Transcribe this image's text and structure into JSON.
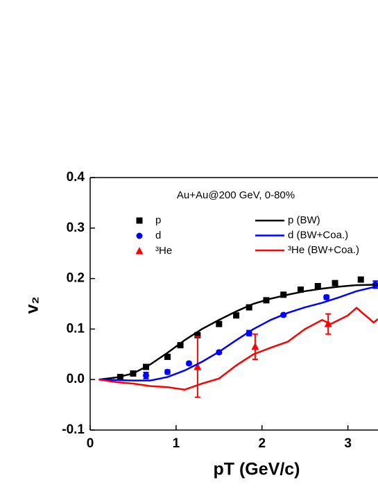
{
  "chart_data": {
    "type": "scatter",
    "annotation": "Au+Au@200 GeV, 0-80%",
    "x_label": "pT (GeV/c)",
    "y_label": "v₂",
    "xlim": [
      0,
      3.35
    ],
    "ylim": [
      -0.1,
      0.4
    ],
    "xticks": [
      0,
      1,
      2,
      3
    ],
    "yticks": [
      -0.1,
      {
        "value": 0,
        "label": "0.0"
      },
      0.1,
      0.2,
      0.3,
      0.4
    ],
    "series": [
      {
        "name": "p",
        "type": "scatter",
        "marker": "square",
        "color": "#000000",
        "x": [
          0.35,
          0.5,
          0.65,
          0.9,
          1.05,
          1.25,
          1.5,
          1.7,
          1.85,
          2.05,
          2.25,
          2.45,
          2.65,
          2.85,
          3.15
        ],
        "values": [
          0.005,
          0.012,
          0.025,
          0.045,
          0.068,
          0.088,
          0.11,
          0.127,
          0.143,
          0.157,
          0.168,
          0.178,
          0.185,
          0.191,
          0.198
        ],
        "errors": [
          0.003,
          0.003,
          0.003,
          0.003,
          0.003,
          0.003,
          0.003,
          0.003,
          0.003,
          0.003,
          0.003,
          0.003,
          0.003,
          0.003,
          0.004
        ]
      },
      {
        "name": "d",
        "type": "scatter",
        "marker": "circle",
        "color": "#0000ff",
        "x": [
          0.65,
          0.9,
          1.15,
          1.5,
          1.85,
          2.25,
          2.75,
          3.32
        ],
        "values": [
          0.008,
          0.015,
          0.032,
          0.054,
          0.092,
          0.128,
          0.163,
          0.188
        ],
        "errors": [
          0.006,
          0.004,
          0.003,
          0.003,
          0.005,
          0.003,
          0.004,
          0.007
        ]
      },
      {
        "name": "³He",
        "type": "scatter",
        "marker": "triangle",
        "color": "#ff0000",
        "x": [
          1.25,
          1.92,
          2.77
        ],
        "values": [
          0.025,
          0.065,
          0.11
        ],
        "errors": [
          0.06,
          0.025,
          0.02
        ]
      },
      {
        "name": "p (BW)",
        "type": "line",
        "color": "#000000",
        "x": [
          0.1,
          0.3,
          0.5,
          0.7,
          0.9,
          1.1,
          1.3,
          1.5,
          1.7,
          1.9,
          2.1,
          2.3,
          2.5,
          2.7,
          2.9,
          3.1,
          3.35
        ],
        "values": [
          0,
          0.004,
          0.012,
          0.03,
          0.053,
          0.078,
          0.1,
          0.118,
          0.135,
          0.15,
          0.16,
          0.168,
          0.175,
          0.18,
          0.184,
          0.187,
          0.188
        ]
      },
      {
        "name": "d (BW+Coa.)",
        "type": "line",
        "color": "#0000ff",
        "x": [
          0.1,
          0.5,
          0.7,
          0.9,
          1.1,
          1.3,
          1.5,
          1.7,
          1.9,
          2.1,
          2.3,
          2.5,
          2.7,
          2.9,
          3.1,
          3.35
        ],
        "values": [
          0,
          -0.002,
          -0.002,
          0.005,
          0.018,
          0.035,
          0.055,
          0.078,
          0.1,
          0.118,
          0.132,
          0.143,
          0.152,
          0.163,
          0.175,
          0.185
        ]
      },
      {
        "name": "³He (BW+Coa.)",
        "type": "line",
        "color": "#ff0000",
        "x": [
          0.1,
          0.3,
          0.5,
          0.7,
          0.9,
          1.1,
          1.3,
          1.5,
          1.7,
          1.9,
          2.1,
          2.3,
          2.5,
          2.7,
          2.8,
          3.0,
          3.1,
          3.3,
          3.35
        ],
        "values": [
          0,
          -0.005,
          -0.008,
          -0.013,
          -0.015,
          -0.02,
          -0.008,
          0.002,
          0.028,
          0.05,
          0.063,
          0.075,
          0.1,
          0.118,
          0.11,
          0.127,
          0.142,
          0.113,
          0.12
        ]
      }
    ]
  }
}
